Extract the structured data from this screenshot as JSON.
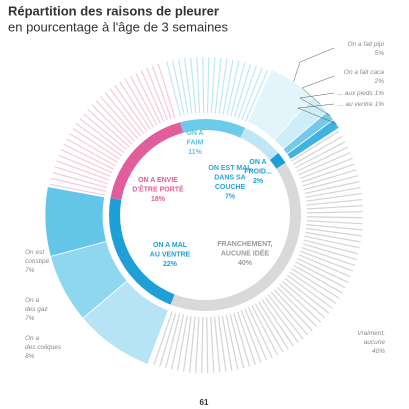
{
  "chart_data": {
    "type": "donut",
    "title": "Répartition des raisons de pleurer",
    "subtitle": "en pourcentage à l'âge de 3 semaines",
    "page_number": "61",
    "inner": {
      "labels": [
        [
          "ON A",
          "FAIM"
        ],
        [
          "ON EST MAL",
          "DANS SA",
          "COUCHE"
        ],
        [
          "ON A",
          "FROID..."
        ],
        [
          "FRANCHEMENT,",
          "AUCUNE IDÉE"
        ],
        [
          "ON A MAL",
          "AU VENTRE"
        ],
        [
          "ON A ENVIE",
          "D'ÊTRE PORTÉ"
        ]
      ],
      "values": [
        11,
        7,
        2,
        40,
        22,
        18
      ],
      "value_labels": [
        "11%",
        "7%",
        "2%",
        "40%",
        "22%",
        "18%"
      ],
      "colors": [
        "#6ccbe8",
        "#bfe6f4",
        "#1a9fd6",
        "#d9d9d9",
        "#1e9fd8",
        "#e25d9c"
      ],
      "text_colors": [
        "#5ec4e6",
        "#2aa6d6",
        "#1a9fd6",
        "#9a9a9a",
        "#1e9fd8",
        "#e25d9c"
      ]
    },
    "outer": {
      "labels": [
        null,
        [
          "On a fait pipi"
        ],
        [
          "On a fait caca"
        ],
        [
          "... aux pieds"
        ],
        [
          "... au ventre"
        ],
        [
          "Vraiment,",
          "aucune"
        ],
        [
          "On a",
          "des coliques"
        ],
        [
          "On a",
          "des gaz"
        ],
        [
          "On est",
          "constipé"
        ],
        null
      ],
      "values": [
        11,
        5,
        2,
        1,
        1,
        40,
        8,
        7,
        7,
        18
      ],
      "value_labels": [
        null,
        "5%",
        "2%",
        "1%",
        "1%",
        "40%",
        "8%",
        "7%",
        "7%",
        null
      ],
      "colors": [
        "#bfe8f5",
        "#e3f4fa",
        "#cdeef8",
        "#74c9e8",
        "#3fb3e0",
        "#d4d4d4",
        "#b6e4f5",
        "#8fd6ef",
        "#63c6e8",
        "#f6c9dd"
      ],
      "patterns": [
        "stripes",
        "solid",
        "solid",
        "solid",
        "solid",
        "stripes",
        "solid",
        "solid",
        "solid",
        "stripes"
      ]
    },
    "start_angle": -15
  }
}
